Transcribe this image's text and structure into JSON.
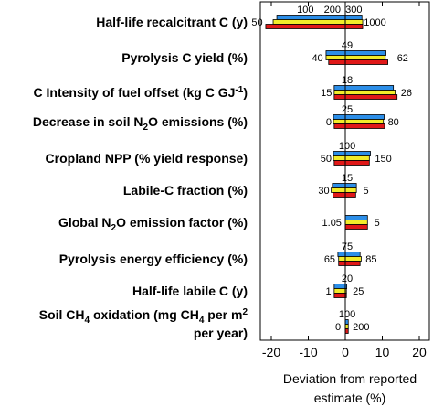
{
  "chart_data": {
    "type": "bar",
    "orientation": "horizontal",
    "subtype": "tornado",
    "xlabel_line1": "Deviation from reported",
    "xlabel_line2": "estimate (%)",
    "xlim": [
      -25,
      24
    ],
    "xticks": [
      -20,
      -10,
      0,
      10,
      20
    ],
    "grid": false,
    "legend": "none",
    "series_colors": [
      "#2c8ee8",
      "#f2ec2a",
      "#e01818"
    ],
    "parameters": [
      {
        "label_parts": [
          {
            "t": "Half-life recalcitrant C (y)"
          }
        ],
        "values": [
          [
            -18.5,
            4.5
          ],
          [
            -19.5,
            4.7
          ],
          [
            -21.5,
            4.7
          ]
        ],
        "labels": [
          {
            "text": "100",
            "x": -10.8,
            "pos": "top"
          },
          {
            "text": "200",
            "x": -3.5,
            "pos": "top"
          },
          {
            "text": "300",
            "x": 2.3,
            "pos": "top"
          },
          {
            "text": "50",
            "x": -22.3,
            "pos": "left"
          },
          {
            "text": "1000",
            "x": 5.0,
            "pos": "right"
          }
        ]
      },
      {
        "label_parts": [
          {
            "t": "Pyrolysis C yield (%)"
          }
        ],
        "values": [
          [
            -5.2,
            11.0
          ],
          [
            -5.2,
            10.8
          ],
          [
            -4.5,
            11.5
          ]
        ],
        "labels": [
          {
            "text": "49",
            "x": 0.5,
            "pos": "top"
          },
          {
            "text": "40",
            "x": -6.0,
            "pos": "left"
          },
          {
            "text": "62",
            "x": 14.0,
            "pos": "right"
          }
        ]
      },
      {
        "label_parts": [
          {
            "t": "C Intensity of fuel offset (kg C GJ"
          },
          {
            "t": "-1",
            "sup": true
          },
          {
            "t": ")"
          }
        ],
        "values": [
          [
            -3.0,
            13.0
          ],
          [
            -3.0,
            13.5
          ],
          [
            -3.0,
            14.0
          ]
        ],
        "labels": [
          {
            "text": "18",
            "x": 0.5,
            "pos": "top"
          },
          {
            "text": "15",
            "x": -3.6,
            "pos": "left"
          },
          {
            "text": "26",
            "x": 15.0,
            "pos": "right"
          }
        ]
      },
      {
        "label_parts": [
          {
            "t": "Decrease in soil N"
          },
          {
            "t": "2",
            "sub": true
          },
          {
            "t": "O emissions (%)"
          }
        ],
        "values": [
          [
            -3.2,
            10.5
          ],
          [
            -3.2,
            10.3
          ],
          [
            -3.0,
            10.6
          ]
        ],
        "labels": [
          {
            "text": "25",
            "x": 0.5,
            "pos": "top"
          },
          {
            "text": "0",
            "x": -3.7,
            "pos": "left"
          },
          {
            "text": "80",
            "x": 11.5,
            "pos": "right"
          }
        ]
      },
      {
        "label_parts": [
          {
            "t": "Cropland NPP (% yield response)"
          }
        ],
        "values": [
          [
            -3.2,
            6.8
          ],
          [
            -3.2,
            6.5
          ],
          [
            -3.0,
            6.5
          ]
        ],
        "labels": [
          {
            "text": "100",
            "x": 0.5,
            "pos": "top"
          },
          {
            "text": "50",
            "x": -3.7,
            "pos": "left"
          },
          {
            "text": "150",
            "x": 8.0,
            "pos": "right"
          }
        ]
      },
      {
        "label_parts": [
          {
            "t": "Labile-C fraction (%)"
          }
        ],
        "values": [
          [
            -3.5,
            3.0
          ],
          [
            -3.8,
            3.0
          ],
          [
            -3.3,
            2.8
          ]
        ],
        "labels": [
          {
            "text": "15",
            "x": 0.5,
            "pos": "top"
          },
          {
            "text": "30",
            "x": -4.3,
            "pos": "left"
          },
          {
            "text": "5",
            "x": 4.8,
            "pos": "right"
          }
        ]
      },
      {
        "label_parts": [
          {
            "t": "Global N"
          },
          {
            "t": "2",
            "sub": true
          },
          {
            "t": "O emission factor (%)"
          }
        ],
        "values": [
          [
            0,
            6.0
          ],
          [
            0,
            6.0
          ],
          [
            0,
            6.0
          ]
        ],
        "labels": [
          {
            "text": "1.05",
            "x": -1.0,
            "pos": "left"
          },
          {
            "text": "5",
            "x": 7.8,
            "pos": "right"
          }
        ]
      },
      {
        "label_parts": [
          {
            "t": "Pyrolysis energy efficiency (%)"
          }
        ],
        "values": [
          [
            -2.0,
            4.0
          ],
          [
            -1.8,
            4.3
          ],
          [
            -1.8,
            4.0
          ]
        ],
        "labels": [
          {
            "text": "75",
            "x": 0.5,
            "pos": "top"
          },
          {
            "text": "65",
            "x": -2.7,
            "pos": "left"
          },
          {
            "text": "85",
            "x": 5.5,
            "pos": "right"
          }
        ]
      },
      {
        "label_parts": [
          {
            "t": "Half-life labile C (y)"
          }
        ],
        "values": [
          [
            -3.0,
            0.4
          ],
          [
            -3.0,
            0.3
          ],
          [
            -3.0,
            0.3
          ]
        ],
        "labels": [
          {
            "text": "20",
            "x": 0.5,
            "pos": "top"
          },
          {
            "text": "1",
            "x": -3.8,
            "pos": "left"
          },
          {
            "text": "25",
            "x": 2.0,
            "pos": "right"
          }
        ]
      },
      {
        "label_parts": [
          {
            "t": "Soil CH"
          },
          {
            "t": "4",
            "sub": true
          },
          {
            "t": " oxidation (mg CH"
          },
          {
            "t": "4",
            "sub": true
          },
          {
            "t": " per m"
          },
          {
            "t": "2",
            "sup": true
          }
        ],
        "label_line2": "per year)",
        "values": [
          [
            0,
            0.8
          ],
          [
            0,
            0.8
          ],
          [
            0,
            0.8
          ]
        ],
        "labels": [
          {
            "text": "100",
            "x": 0.5,
            "pos": "top"
          },
          {
            "text": "0",
            "x": -1.2,
            "pos": "left"
          },
          {
            "text": "200",
            "x": 2.0,
            "pos": "right"
          }
        ]
      }
    ]
  }
}
